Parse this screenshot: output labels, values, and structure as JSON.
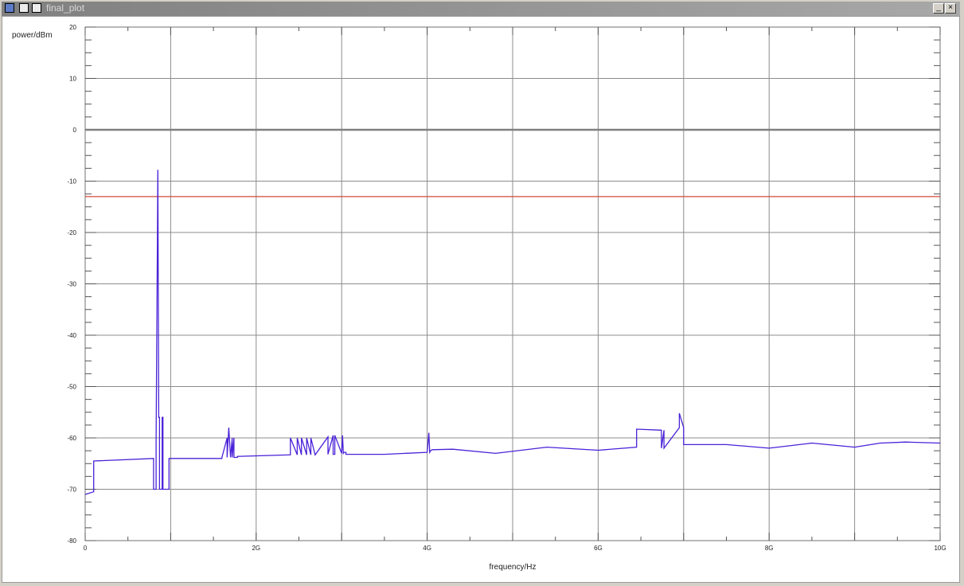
{
  "window": {
    "title": "final_plot",
    "icons": [
      "app-icon",
      "restore-icon",
      "window-icon"
    ],
    "minimize_label": "_",
    "close_label": "×"
  },
  "chart_data": {
    "type": "line",
    "ylabel": "power/dBm",
    "xlabel": "frequency/Hz",
    "xlim": [
      0,
      10000000000
    ],
    "ylim": [
      -80,
      20
    ],
    "x_ticks": [
      {
        "value": 0,
        "label": "0"
      },
      {
        "value": 2000000000,
        "label": "2G"
      },
      {
        "value": 4000000000,
        "label": "4G"
      },
      {
        "value": 6000000000,
        "label": "6G"
      },
      {
        "value": 8000000000,
        "label": "8G"
      },
      {
        "value": 10000000000,
        "label": "10G"
      }
    ],
    "y_ticks": [
      20,
      10,
      0,
      -10,
      -20,
      -30,
      -40,
      -50,
      -60,
      -70,
      -80
    ],
    "grid": true,
    "reference_lines": [
      {
        "y": 0,
        "color": "#808080"
      },
      {
        "y": -13,
        "color": "#d24a3a"
      }
    ],
    "series": [
      {
        "color": "#4a22d8",
        "x": [
          0,
          0.1,
          0.1,
          0.8,
          0.8,
          0.83,
          0.83,
          0.85,
          0.86,
          0.87,
          0.87,
          0.9,
          0.9,
          0.91,
          0.91,
          0.98,
          0.98,
          1.0,
          1.0,
          1.6,
          1.6,
          1.66,
          1.66,
          1.68,
          1.7,
          1.72,
          1.72,
          1.74,
          1.74,
          1.78,
          1.78,
          2.4,
          2.4,
          2.48,
          2.48,
          2.53,
          2.53,
          2.59,
          2.59,
          2.64,
          2.64,
          2.69,
          2.69,
          2.84,
          2.84,
          2.9,
          2.9,
          2.92,
          2.92,
          3.0,
          3.01,
          3.02,
          3.03,
          3.05,
          3.05,
          3.5,
          4.0,
          4.02,
          4.03,
          4.04,
          4.06,
          4.3,
          4.8,
          5.4,
          6.0,
          6.45,
          6.45,
          6.74,
          6.74,
          6.77,
          6.77,
          6.95,
          6.95,
          7.0,
          7.0,
          7.5,
          8.0,
          8.5,
          9.0,
          9.3,
          9.6,
          10.0
        ],
        "y": [
          -71,
          -70.5,
          -64.5,
          -64,
          -70,
          -70,
          -60.5,
          -7.8,
          -56,
          -56,
          -70,
          -70,
          -56,
          -56,
          -70,
          -70,
          -64,
          -64,
          -64,
          -64,
          -63.8,
          -60,
          -63.8,
          -58,
          -63.8,
          -60,
          -63.8,
          -60,
          -63.8,
          -63.8,
          -63.6,
          -63.3,
          -60,
          -63.3,
          -60,
          -63.3,
          -60,
          -63.3,
          -60,
          -63.3,
          -60,
          -63.3,
          -63.3,
          -59.8,
          -63.2,
          -59.5,
          -63.2,
          -63.2,
          -59.5,
          -63,
          -59.5,
          -63,
          -62.8,
          -62.8,
          -63.2,
          -63.2,
          -62.8,
          -59,
          -62.8,
          -62.5,
          -62.3,
          -62.2,
          -63,
          -61.8,
          -62.4,
          -61.8,
          -58.3,
          -58.5,
          -62,
          -58.5,
          -62,
          -58,
          -55.2,
          -58,
          -61.3,
          -61.3,
          -62,
          -61,
          -61.8,
          -61,
          -60.8,
          -61
        ]
      }
    ]
  }
}
